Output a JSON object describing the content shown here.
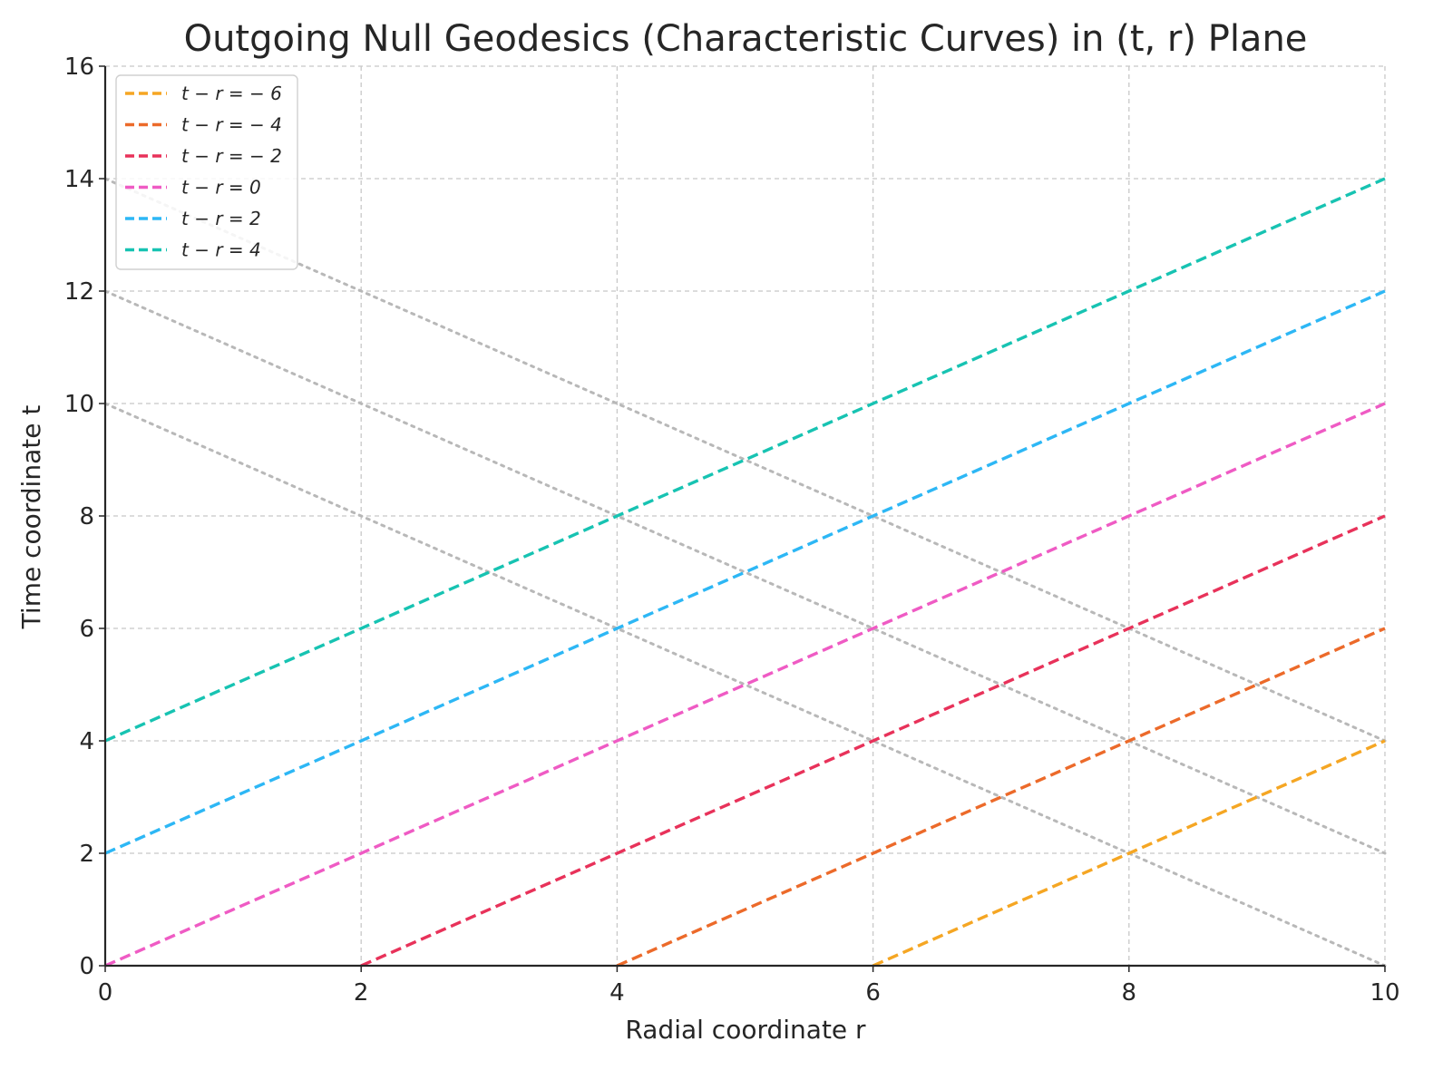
{
  "chart_data": {
    "type": "line",
    "title": "Outgoing Null Geodesics (Characteristic Curves) in (t, r) Plane",
    "xlabel": "Radial coordinate r",
    "ylabel": "Time coordinate t",
    "xlim": [
      0,
      10
    ],
    "ylim": [
      0,
      16
    ],
    "xticks": [
      0,
      2,
      4,
      6,
      8,
      10
    ],
    "yticks": [
      0,
      2,
      4,
      6,
      8,
      10,
      12,
      14,
      16
    ],
    "grid": true,
    "legend_position": "top-left",
    "series": [
      {
        "name": "t − r = − 6",
        "color": "#f5a623",
        "style": "dashed",
        "points": [
          [
            6,
            0
          ],
          [
            10,
            4
          ]
        ]
      },
      {
        "name": "t − r = − 4",
        "color": "#ec6a2a",
        "style": "dashed",
        "points": [
          [
            4,
            0
          ],
          [
            10,
            6
          ]
        ]
      },
      {
        "name": "t − r = − 2",
        "color": "#e8325a",
        "style": "dashed",
        "points": [
          [
            2,
            0
          ],
          [
            10,
            8
          ]
        ]
      },
      {
        "name": "t − r = 0",
        "color": "#ef5bc4",
        "style": "dashed",
        "points": [
          [
            0,
            0
          ],
          [
            10,
            10
          ]
        ]
      },
      {
        "name": "t − r = 2",
        "color": "#2db7f5",
        "style": "dashed",
        "points": [
          [
            0,
            2
          ],
          [
            10,
            12
          ]
        ]
      },
      {
        "name": "t − r = 4",
        "color": "#17c3b2",
        "style": "dashed",
        "points": [
          [
            0,
            4
          ],
          [
            10,
            14
          ]
        ]
      }
    ],
    "reference_lines": [
      {
        "color": "#b8b8b8",
        "style": "dotted",
        "points": [
          [
            0,
            10
          ],
          [
            10,
            0
          ]
        ]
      },
      {
        "color": "#b8b8b8",
        "style": "dotted",
        "points": [
          [
            0,
            12
          ],
          [
            10,
            2
          ]
        ]
      },
      {
        "color": "#b8b8b8",
        "style": "dotted",
        "points": [
          [
            0,
            14
          ],
          [
            10,
            4
          ]
        ]
      }
    ]
  }
}
